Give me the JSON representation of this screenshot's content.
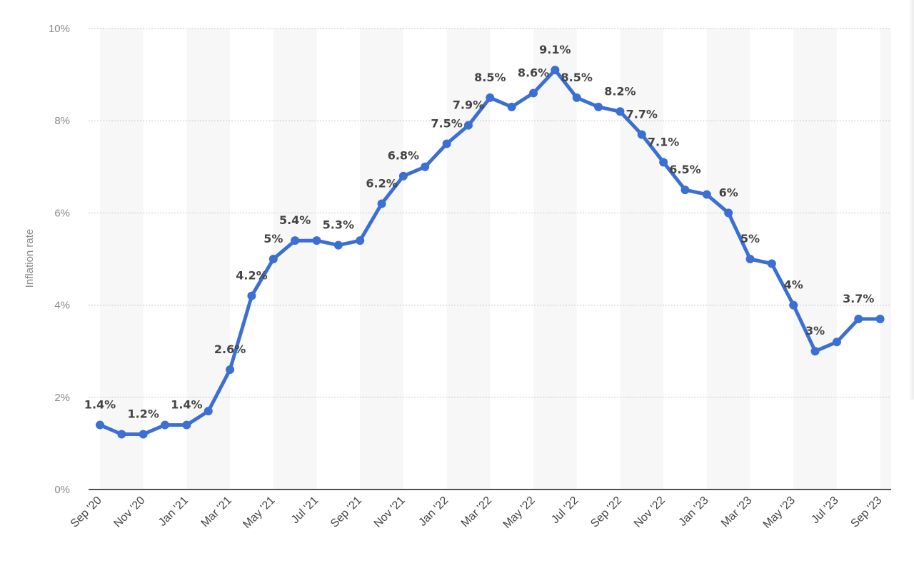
{
  "chart_data": {
    "type": "line",
    "ylabel": "Inflation rate",
    "ylim": [
      0,
      10
    ],
    "y_ticks": [
      "0%",
      "2%",
      "4%",
      "6%",
      "8%",
      "10%"
    ],
    "y_tick_values": [
      0,
      2,
      4,
      6,
      8,
      10
    ],
    "x_tick_labels": [
      "Sep '20",
      "Nov '20",
      "Jan '21",
      "Mar '21",
      "May '21",
      "Jul '21",
      "Sep '21",
      "Nov '21",
      "Jan '22",
      "Mar '22",
      "May '22",
      "Jul '22",
      "Sep '22",
      "Nov '22",
      "Jan '23",
      "Mar '23",
      "May '23",
      "Jul '23",
      "Sep '23"
    ],
    "categories": [
      "Sep '20",
      "Oct '20",
      "Nov '20",
      "Dec '20",
      "Jan '21",
      "Feb '21",
      "Mar '21",
      "Apr '21",
      "May '21",
      "Jun '21",
      "Jul '21",
      "Aug '21",
      "Sep '21",
      "Oct '21",
      "Nov '21",
      "Dec '21",
      "Jan '22",
      "Feb '22",
      "Mar '22",
      "Apr '22",
      "May '22",
      "Jun '22",
      "Jul '22",
      "Aug '22",
      "Sep '22",
      "Oct '22",
      "Nov '22",
      "Dec '22",
      "Jan '23",
      "Feb '23",
      "Mar '23",
      "Apr '23",
      "May '23",
      "Jun '23",
      "Jul '23",
      "Aug '23",
      "Sep '23"
    ],
    "series": [
      {
        "values": [
          1.4,
          1.2,
          1.2,
          1.4,
          1.4,
          1.7,
          2.6,
          4.2,
          5.0,
          5.4,
          5.4,
          5.3,
          5.4,
          6.2,
          6.8,
          7.0,
          7.5,
          7.9,
          8.5,
          8.3,
          8.6,
          9.1,
          8.5,
          8.3,
          8.2,
          7.7,
          7.1,
          6.5,
          6.4,
          6.0,
          5.0,
          4.9,
          4.0,
          3.0,
          3.2,
          3.7,
          3.7
        ],
        "color": "#3b6fd4"
      }
    ],
    "data_labels": [
      {
        "i": 0,
        "text": "1.4%"
      },
      {
        "i": 2,
        "text": "1.2%"
      },
      {
        "i": 4,
        "text": "1.4%"
      },
      {
        "i": 6,
        "text": "2.6%"
      },
      {
        "i": 7,
        "text": "4.2%"
      },
      {
        "i": 8,
        "text": "5%"
      },
      {
        "i": 9,
        "text": "5.4%"
      },
      {
        "i": 11,
        "text": "5.3%"
      },
      {
        "i": 13,
        "text": "6.2%"
      },
      {
        "i": 14,
        "text": "6.8%"
      },
      {
        "i": 16,
        "text": "7.5%"
      },
      {
        "i": 17,
        "text": "7.9%"
      },
      {
        "i": 18,
        "text": "8.5%"
      },
      {
        "i": 20,
        "text": "8.6%"
      },
      {
        "i": 21,
        "text": "9.1%"
      },
      {
        "i": 22,
        "text": "8.5%"
      },
      {
        "i": 24,
        "text": "8.2%"
      },
      {
        "i": 25,
        "text": "7.7%"
      },
      {
        "i": 26,
        "text": "7.1%"
      },
      {
        "i": 27,
        "text": "6.5%"
      },
      {
        "i": 29,
        "text": "6%"
      },
      {
        "i": 30,
        "text": "5%"
      },
      {
        "i": 32,
        "text": "4%"
      },
      {
        "i": 33,
        "text": "3%"
      },
      {
        "i": 35,
        "text": "3.7%"
      }
    ],
    "grid": true,
    "legend": "none",
    "colors": {
      "line": "#3b6fd4",
      "band": "#f7f7f7",
      "grid": "#c8c8c8",
      "axis": "#1a1a1a"
    }
  }
}
